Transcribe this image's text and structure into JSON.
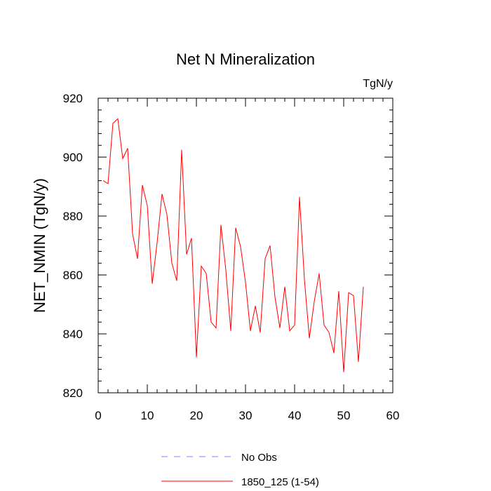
{
  "chart_data": {
    "type": "line",
    "title": "Net N Mineralization",
    "units_label": "TgN/y",
    "xlabel": "",
    "ylabel": "NET_NMIN  (TgN/y)",
    "xlim": [
      0,
      60
    ],
    "ylim": [
      820,
      920
    ],
    "x_ticks": [
      0,
      10,
      20,
      30,
      40,
      50,
      60
    ],
    "y_ticks": [
      820,
      840,
      860,
      880,
      900,
      920
    ],
    "x_minor_step": 2,
    "y_minor_step": 4,
    "grid": false,
    "legend_position": "bottom-center",
    "series": [
      {
        "name": "No Obs",
        "color": "#8080ff",
        "dash": "dashed",
        "x": [],
        "values": []
      },
      {
        "name": "1850_125 (1-54)",
        "color": "#ff0000",
        "dash": "solid",
        "x": [
          1,
          2,
          3,
          4,
          5,
          6,
          7,
          8,
          9,
          10,
          11,
          12,
          13,
          14,
          15,
          16,
          17,
          18,
          19,
          20,
          21,
          22,
          23,
          24,
          25,
          26,
          27,
          28,
          29,
          30,
          31,
          32,
          33,
          34,
          35,
          36,
          37,
          38,
          39,
          40,
          41,
          42,
          43,
          44,
          45,
          46,
          47,
          48,
          49,
          50,
          51,
          52,
          53,
          54
        ],
        "values": [
          892,
          891,
          911.5,
          913,
          899.5,
          903,
          874,
          865.5,
          890.5,
          883.5,
          857,
          871,
          887.5,
          880.5,
          864,
          858,
          902.5,
          867,
          872.5,
          832,
          863,
          860.5,
          844,
          842,
          877,
          861.5,
          841,
          876,
          869.5,
          857.5,
          841,
          849.5,
          840.5,
          865.5,
          870,
          852.5,
          842,
          856,
          841,
          843,
          886.5,
          858.5,
          838.5,
          851,
          860.5,
          843,
          840.5,
          833.5,
          854.5,
          827,
          854,
          853,
          830.5,
          856
        ]
      }
    ]
  }
}
